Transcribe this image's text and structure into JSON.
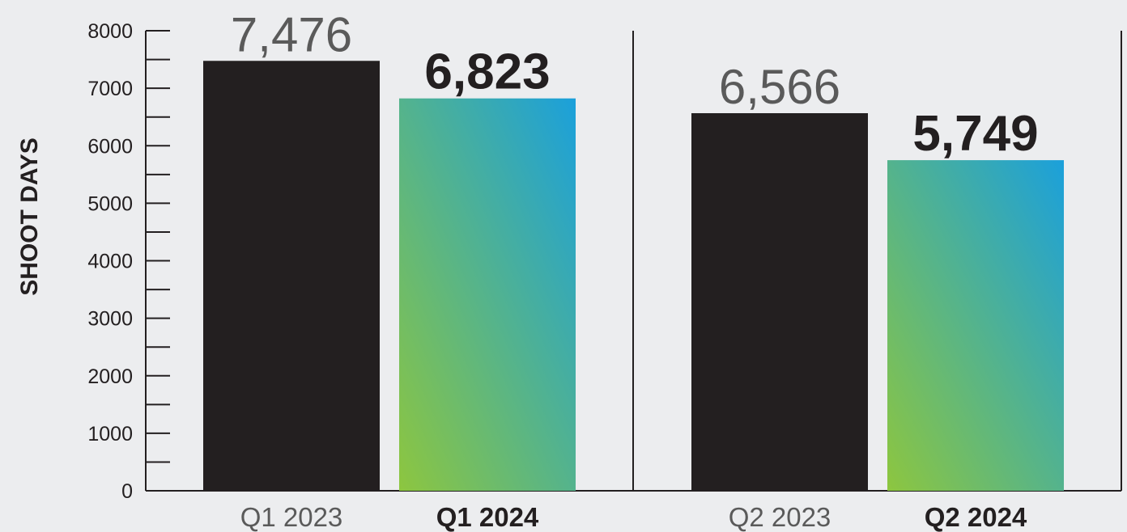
{
  "chart_data": {
    "type": "bar",
    "ylabel": "SHOOT DAYS",
    "ylim": [
      0,
      8000
    ],
    "yticks": [
      0,
      1000,
      2000,
      3000,
      4000,
      5000,
      6000,
      7000,
      8000
    ],
    "categories": [
      "Q1 2023",
      "Q1 2024",
      "Q2 2023",
      "Q2 2024"
    ],
    "values": [
      7476,
      6823,
      6566,
      5749
    ],
    "value_labels": [
      "7,476",
      "6,823",
      "6,566",
      "5,749"
    ],
    "emphasis": [
      false,
      true,
      false,
      true
    ],
    "colors": {
      "prior_year_bar": "#231f20",
      "current_year_gradient_start": "#8dc63f",
      "current_year_gradient_end": "#1ba0db",
      "prior_label": "#5a5a5a",
      "current_label": "#231f20",
      "background": "#ecedef"
    }
  }
}
